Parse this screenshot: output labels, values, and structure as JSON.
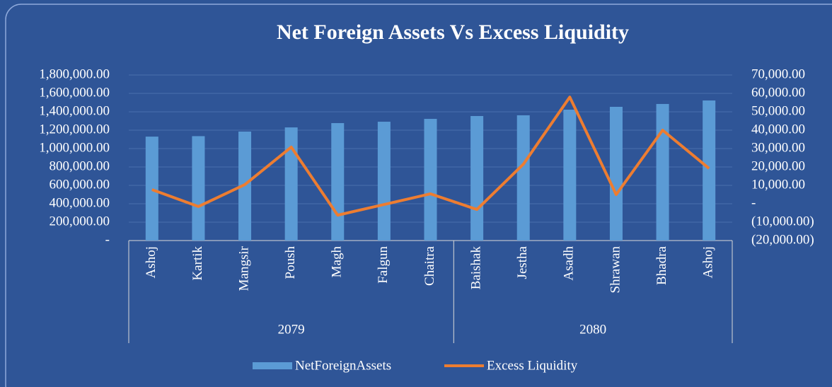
{
  "chart_data": {
    "type": "bar-line",
    "title": "Net Foreign Assets Vs Excess Liquidity",
    "categories": [
      "Ashoj",
      "Kartik",
      "Mangsir",
      "Poush",
      "Magh",
      "Falgun",
      "Chaitra",
      "Baishak",
      "Jestha",
      "Asadh",
      "Shrawan",
      "Bhadra",
      "Ashoj"
    ],
    "groups": [
      {
        "label": "2079",
        "size": 7
      },
      {
        "label": "2080",
        "size": 6
      }
    ],
    "series": [
      {
        "name": "NetForeignAssets",
        "type": "bar",
        "color": "#5b9bd5",
        "values": [
          1130000,
          1135000,
          1185000,
          1230000,
          1277000,
          1292000,
          1323000,
          1354000,
          1362000,
          1423000,
          1454000,
          1485000,
          1523000
        ]
      },
      {
        "name": "Excess Liquidity",
        "type": "line",
        "axis": "y2",
        "color": "#ed7d31",
        "values": [
          7700,
          -1500,
          10400,
          30800,
          -6200,
          -400,
          5400,
          -3100,
          21500,
          58000,
          5000,
          40000,
          19200
        ]
      }
    ],
    "ylim": [
      0,
      1800000
    ],
    "yticks": [
      {
        "value": 0,
        "label": "-"
      },
      {
        "value": 200000,
        "label": "200,000.00"
      },
      {
        "value": 400000,
        "label": "400,000.00"
      },
      {
        "value": 600000,
        "label": "600,000.00"
      },
      {
        "value": 800000,
        "label": "800,000.00"
      },
      {
        "value": 1000000,
        "label": "1,000,000.00"
      },
      {
        "value": 1200000,
        "label": "1,200,000.00"
      },
      {
        "value": 1400000,
        "label": "1,400,000.00"
      },
      {
        "value": 1600000,
        "label": "1,600,000.00"
      },
      {
        "value": 1800000,
        "label": "1,800,000.00"
      }
    ],
    "y2lim": [
      -20000,
      70000
    ],
    "y2ticks": [
      {
        "value": -20000,
        "label": "(20,000.00)"
      },
      {
        "value": -10000,
        "label": "(10,000.00)"
      },
      {
        "value": 0,
        "label": "-"
      },
      {
        "value": 10000,
        "label": "10,000.00"
      },
      {
        "value": 20000,
        "label": "20,000.00"
      },
      {
        "value": 30000,
        "label": "30,000.00"
      },
      {
        "value": 40000,
        "label": "40,000.00"
      },
      {
        "value": 50000,
        "label": "50,000.00"
      },
      {
        "value": 60000,
        "label": "60,000.00"
      },
      {
        "value": 70000,
        "label": "70,000.00"
      }
    ],
    "grid": true,
    "legend": "bottom"
  }
}
